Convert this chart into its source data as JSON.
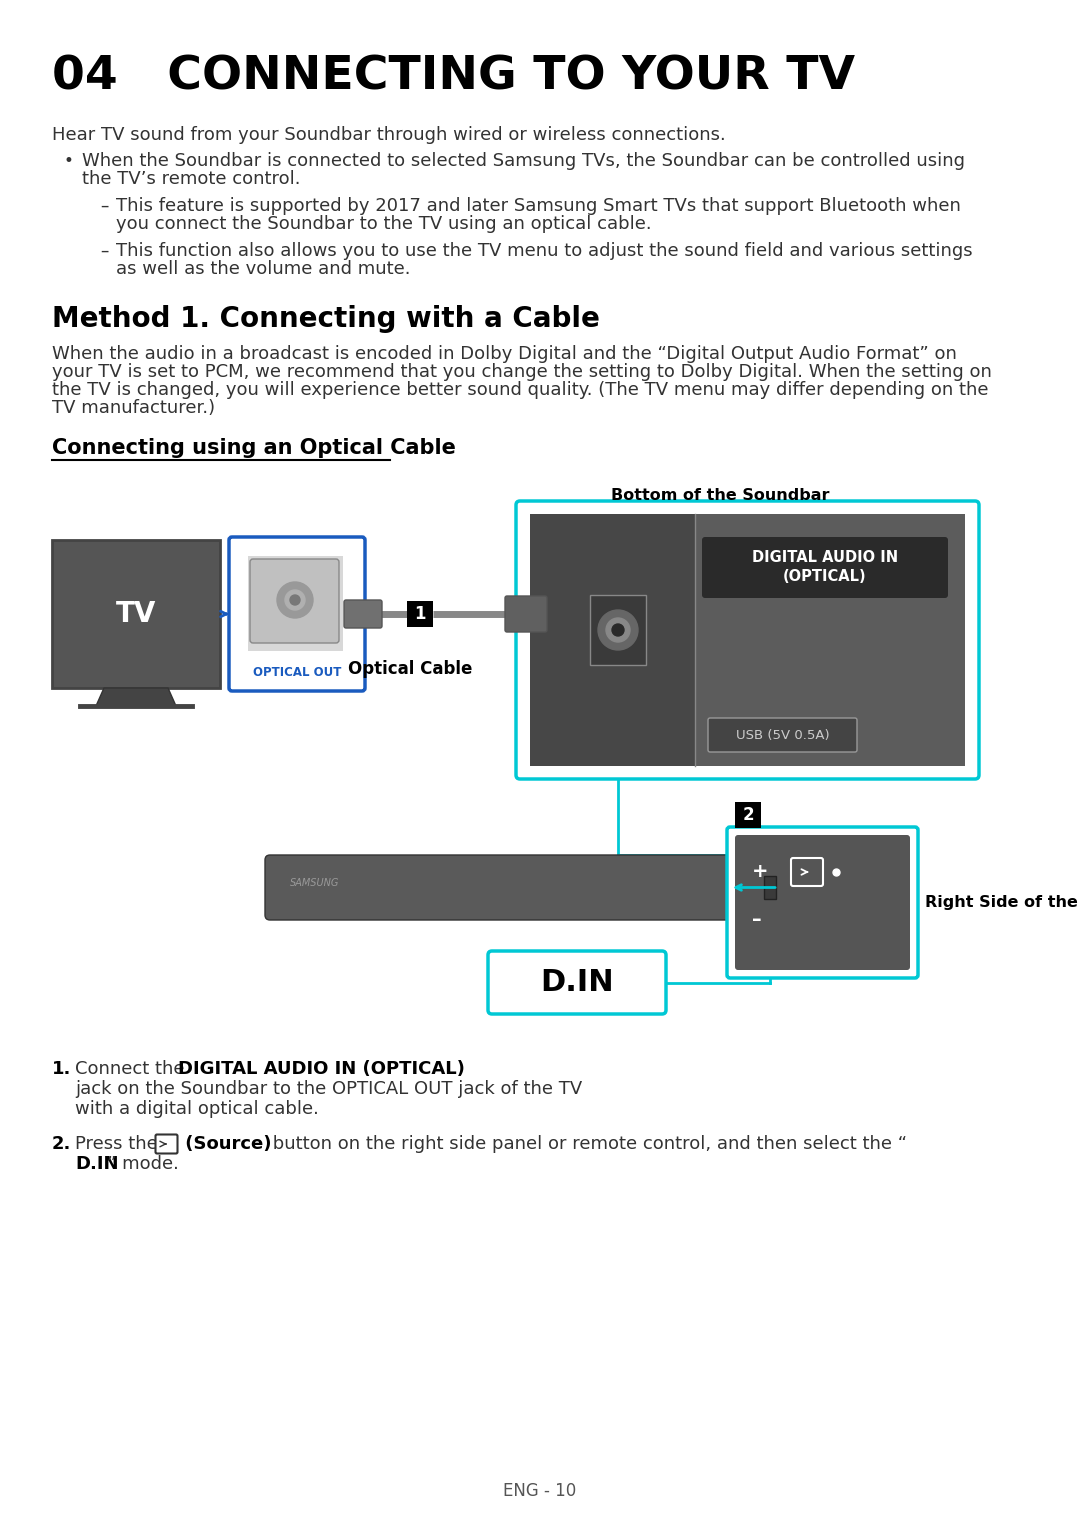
{
  "title": "04   CONNECTING TO YOUR TV",
  "bg_color": "#ffffff",
  "intro_text": "Hear TV sound from your Soundbar through wired or wireless connections.",
  "bullet1_line1": "When the Soundbar is connected to selected Samsung TVs, the Soundbar can be controlled using",
  "bullet1_line2": "the TV’s remote control.",
  "sub1_line1": "This feature is supported by 2017 and later Samsung Smart TVs that support Bluetooth when",
  "sub1_line2": "you connect the Soundbar to the TV using an optical cable.",
  "sub2_line1": "This function also allows you to use the TV menu to adjust the sound field and various settings",
  "sub2_line2": "as well as the volume and mute.",
  "method_title": "Method 1. Connecting with a Cable",
  "method_line1": "When the audio in a broadcast is encoded in Dolby Digital and the “Digital Output Audio Format” on",
  "method_line2": "your TV is set to PCM, we recommend that you change the setting to Dolby Digital. When the setting on",
  "method_line3": "the TV is changed, you will experience better sound quality. (The TV menu may differ depending on the",
  "method_line4": "TV manufacturer.)",
  "optical_title": "Connecting using an Optical Cable",
  "bottom_label": "Bottom of the Soundbar",
  "right_label": "Right Side of the Soundbar",
  "optical_cable_label": "Optical Cable",
  "din_label": "D.IN",
  "optical_out_label": "OPTICAL OUT",
  "digital_audio_label": "DIGITAL AUDIO IN\n(OPTICAL)",
  "usb_label": "USB (5V 0.5A)",
  "footer": "ENG - 10",
  "cyan_color": "#00c8d4",
  "blue_color": "#1a5bbf",
  "dark_gray": "#4a4a4a",
  "mid_gray": "#666666",
  "panel_gray": "#5a5a5a",
  "black": "#000000",
  "white": "#ffffff",
  "text_dark": "#1a1a1a",
  "text_body": "#333333"
}
